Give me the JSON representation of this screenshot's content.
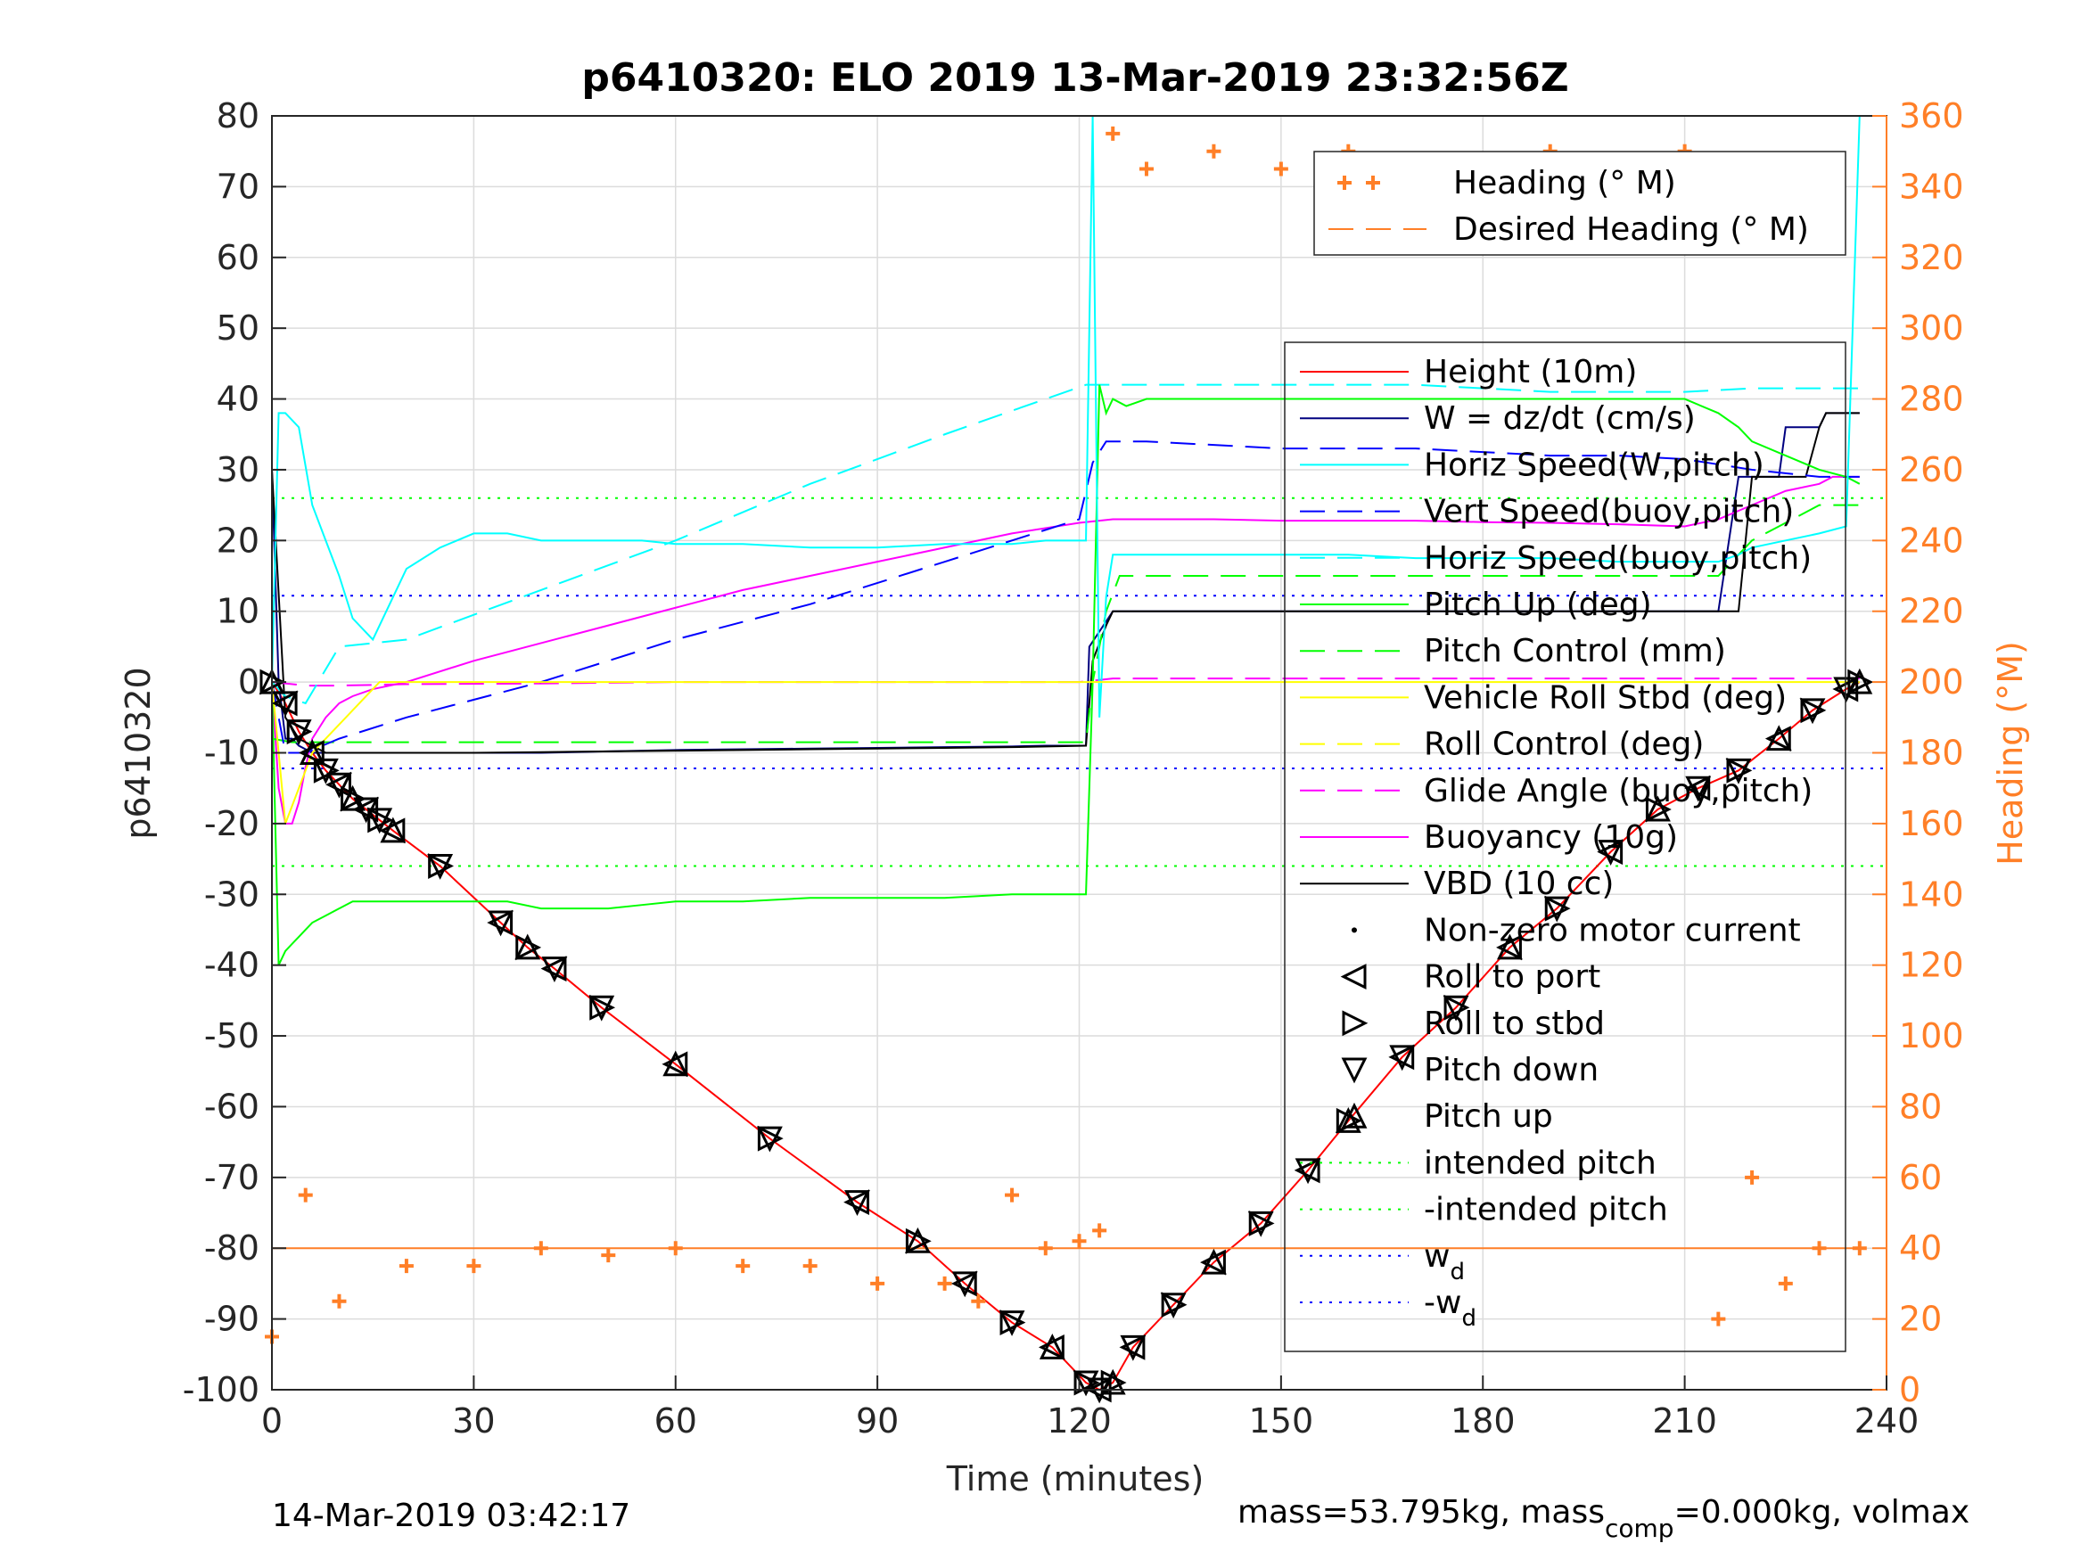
{
  "title": "p6410320: ELO 2019 13-Mar-2019 23:32:56Z",
  "footer": {
    "date": "14-Mar-2019 03:42:17",
    "mass": "mass=53.795kg, mass",
    "mass_sub": "comp",
    "mass_tail": "=0.000kg, volmax"
  },
  "colors": {
    "height": "#ff0000",
    "w": "#000080",
    "horiz_w": "#00ffff",
    "vert_buoy": "#0000ff",
    "horiz_buoy": "#00ffff",
    "pitch": "#00ff00",
    "roll": "#ffff00",
    "glide": "#ff00ff",
    "buoyancy": "#ff00ff",
    "vbd": "#000000",
    "heading": "#ff7f27",
    "intended": "#00ff00",
    "wd": "#0000ff"
  },
  "chart_data": {
    "type": "line",
    "xlabel": "Time (minutes)",
    "ylabel": "p6410320",
    "y2label": "Heading (°M)",
    "xlim": [
      0,
      240
    ],
    "ylim": [
      -100,
      80
    ],
    "y2lim": [
      0,
      360
    ],
    "xticks": [
      0,
      30,
      60,
      90,
      120,
      150,
      180,
      210,
      240
    ],
    "yticks": [
      80,
      70,
      60,
      50,
      40,
      30,
      20,
      10,
      0,
      -10,
      -20,
      -30,
      -40,
      -50,
      -60,
      -70,
      -80,
      -90,
      -100
    ],
    "y2ticks": [
      360,
      340,
      320,
      300,
      280,
      260,
      240,
      220,
      200,
      180,
      160,
      140,
      120,
      100,
      80,
      60,
      40,
      20,
      0
    ],
    "grid": true,
    "legend_heading": {
      "placement": "top-right",
      "entries": [
        "Heading (° M)",
        "Desired Heading (° M)"
      ]
    },
    "legend_main": {
      "placement": "right",
      "entries": [
        {
          "label": "Height (10m)",
          "style": "line",
          "color": "#ff0000"
        },
        {
          "label": "W = dz/dt (cm/s)",
          "style": "line",
          "color": "#000080"
        },
        {
          "label": "Horiz Speed(W,pitch)",
          "style": "line",
          "color": "#00ffff"
        },
        {
          "label": "Vert Speed(buoy,pitch)",
          "style": "dash",
          "color": "#0000ff"
        },
        {
          "label": "Horiz Speed(buoy,pitch)",
          "style": "dash",
          "color": "#00ffff"
        },
        {
          "label": "Pitch Up (deg)",
          "style": "line",
          "color": "#00ff00"
        },
        {
          "label": "Pitch Control (mm)",
          "style": "dash",
          "color": "#00ff00"
        },
        {
          "label": "Vehicle Roll Stbd (deg)",
          "style": "line",
          "color": "#ffff00"
        },
        {
          "label": "Roll Control (deg)",
          "style": "dash",
          "color": "#ffff00"
        },
        {
          "label": "Glide Angle (buoy,pitch)",
          "style": "dash",
          "color": "#ff00ff"
        },
        {
          "label": "Buoyancy (10g)",
          "style": "line",
          "color": "#ff00ff"
        },
        {
          "label": "VBD (10 cc)",
          "style": "line",
          "color": "#000000"
        },
        {
          "label": "Non-zero motor current",
          "style": "dot",
          "color": "#000000"
        },
        {
          "label": "Roll to port",
          "style": "tri-left",
          "color": "#000000"
        },
        {
          "label": "Roll to stbd",
          "style": "tri-right",
          "color": "#000000"
        },
        {
          "label": "Pitch down",
          "style": "tri-down",
          "color": "#000000"
        },
        {
          "label": "Pitch up",
          "style": "tri-up",
          "color": "#000000"
        },
        {
          "label": "intended pitch",
          "style": "dot-line",
          "color": "#00ff00"
        },
        {
          "label": "-intended pitch",
          "style": "dot-line",
          "color": "#00ff00"
        },
        {
          "label": "w",
          "sub": "d",
          "style": "dot-line",
          "color": "#0000ff"
        },
        {
          "label": "-w",
          "sub": "d",
          "style": "dot-line",
          "color": "#0000ff"
        }
      ]
    },
    "reference_lines": {
      "intended_pitch": 26,
      "wd": 12.2,
      "desired_heading": 40
    },
    "series": [
      {
        "name": "Height (10m)",
        "x": [
          0,
          2,
          4,
          6,
          8,
          10,
          12,
          14,
          16,
          18,
          25,
          34,
          38,
          42,
          49,
          60,
          74,
          87,
          96,
          103,
          110,
          116,
          121,
          123,
          125,
          128,
          134,
          140,
          147,
          154,
          160,
          168,
          176,
          184,
          191,
          199,
          206,
          212,
          218,
          224,
          229,
          234,
          236
        ],
        "y": [
          0,
          -3,
          -7,
          -10,
          -12.5,
          -14.5,
          -16.5,
          -18,
          -19.5,
          -21,
          -26,
          -34,
          -37.5,
          -40.5,
          -46,
          -54,
          -64.5,
          -73.5,
          -79,
          -85,
          -90.5,
          -94,
          -99,
          -100,
          -99,
          -94,
          -88,
          -82,
          -76.5,
          -69,
          -62,
          -53,
          -46,
          -37.5,
          -32,
          -24,
          -18,
          -15,
          -12.5,
          -8,
          -4,
          -1,
          0
        ]
      },
      {
        "name": "W = dz/dt (cm/s)",
        "x": [
          0,
          1,
          2,
          3,
          4,
          5,
          6,
          8,
          10,
          12,
          15,
          20,
          30,
          40,
          50,
          60,
          70,
          80,
          90,
          100,
          110,
          115,
          121,
          121.5,
          125,
          130,
          140,
          150,
          160,
          170,
          180,
          190,
          200,
          210,
          215,
          218,
          220,
          224,
          225,
          230,
          231,
          234,
          236
        ],
        "y": [
          30,
          0,
          -8,
          -8,
          -9,
          -9.5,
          -10,
          -10,
          -10,
          -10,
          -10,
          -10,
          -10,
          -10,
          -9.8,
          -9.6,
          -9.5,
          -9.4,
          -9.3,
          -9.2,
          -9.1,
          -9.0,
          -9,
          5,
          10,
          10,
          10,
          10,
          10,
          10,
          10,
          10,
          10,
          10,
          10,
          29,
          29,
          29,
          36,
          36,
          38,
          38,
          38
        ]
      },
      {
        "name": "VBD (10 cc)",
        "x": [
          0,
          2,
          4,
          6,
          8,
          10,
          14,
          18,
          20,
          30,
          40,
          50,
          60,
          70,
          80,
          90,
          100,
          110,
          121,
          122,
          124,
          125,
          126,
          130,
          140,
          150,
          160,
          170,
          180,
          190,
          200,
          210,
          215,
          218,
          220,
          224,
          225,
          228,
          230,
          231,
          234,
          236
        ],
        "y": [
          30,
          -5,
          -8,
          -9,
          -10,
          -10,
          -10,
          -10,
          -10,
          -10,
          -9.9,
          -9.8,
          -9.7,
          -9.6,
          -9.5,
          -9.4,
          -9.3,
          -9.2,
          -9,
          3,
          8,
          10,
          10,
          10,
          10,
          10,
          10,
          10,
          10,
          10,
          10,
          10,
          10,
          10,
          29,
          29,
          29,
          29,
          36,
          38,
          38,
          38
        ]
      },
      {
        "name": "Buoyancy (10g)",
        "x": [
          0,
          1,
          2,
          3,
          4,
          5,
          6,
          8,
          10,
          12,
          15,
          20,
          30,
          40,
          50,
          60,
          70,
          80,
          90,
          100,
          110,
          120,
          125,
          130,
          140,
          150,
          160,
          170,
          180,
          190,
          200,
          210,
          215,
          220,
          225,
          230,
          232,
          234,
          236
        ],
        "y": [
          0,
          -15,
          -20,
          -20,
          -17,
          -12,
          -8,
          -5,
          -3,
          -2,
          -1,
          0,
          3,
          5.5,
          8,
          10.5,
          13,
          15,
          17,
          19,
          21,
          22.5,
          23,
          23,
          23,
          22.8,
          22.8,
          22.8,
          22.6,
          22.5,
          22.3,
          22,
          23,
          25,
          27,
          28,
          29,
          29,
          29
        ]
      },
      {
        "name": "Glide Angle (buoy,pitch)",
        "x": [
          0,
          5,
          10,
          20,
          40,
          60,
          80,
          100,
          120,
          125,
          140,
          160,
          180,
          200,
          220,
          236
        ],
        "y": [
          0,
          -0.5,
          -0.5,
          -0.3,
          -0.2,
          0,
          0,
          0,
          0,
          0.5,
          0.5,
          0.5,
          0.5,
          0.5,
          0.5,
          0.5
        ]
      },
      {
        "name": "Pitch Control (mm)",
        "x": [
          0,
          3,
          6,
          10,
          20,
          40,
          60,
          80,
          100,
          121,
          122,
          124,
          126,
          130,
          140,
          160,
          180,
          200,
          215,
          220,
          224,
          230,
          236
        ],
        "y": [
          -8,
          -8.5,
          -8.5,
          -8.5,
          -8.5,
          -8.5,
          -8.5,
          -8.5,
          -8.5,
          -8.5,
          0,
          10,
          15,
          15,
          15,
          15,
          15,
          15,
          15,
          20,
          22,
          25,
          25
        ]
      },
      {
        "name": "Vert Speed(buoy,pitch)",
        "x": [
          0,
          2,
          5,
          10,
          20,
          40,
          60,
          80,
          100,
          120,
          122,
          124,
          130,
          140,
          150,
          160,
          170,
          180,
          190,
          200,
          210,
          220,
          230,
          236
        ],
        "y": [
          0,
          -10,
          -10,
          -8,
          -5,
          0,
          6,
          11,
          17,
          23,
          31,
          34,
          34,
          33.5,
          33,
          33,
          33,
          32.5,
          32,
          32,
          31.5,
          30,
          29,
          29
        ]
      },
      {
        "name": "Horiz Speed(buoy,pitch)",
        "x": [
          0,
          2,
          5,
          10,
          20,
          40,
          60,
          80,
          100,
          121,
          123,
          125,
          130,
          140,
          150,
          160,
          170,
          180,
          190,
          200,
          210,
          220,
          230,
          236
        ],
        "y": [
          0,
          -2,
          -3,
          5,
          6,
          13,
          20,
          28,
          35,
          42,
          42,
          42,
          42,
          42,
          42,
          42,
          42,
          41.5,
          41,
          41,
          41,
          41.5,
          41.5,
          41.5
        ]
      },
      {
        "name": "Pitch Up (deg)",
        "x": [
          0,
          1,
          2,
          3,
          4,
          5,
          6,
          8,
          10,
          12,
          15,
          20,
          25,
          30,
          35,
          40,
          45,
          50,
          55,
          60,
          70,
          80,
          90,
          100,
          110,
          115,
          121,
          122,
          123,
          124,
          125,
          127,
          130,
          140,
          150,
          160,
          170,
          180,
          190,
          200,
          210,
          215,
          218,
          220,
          225,
          230,
          234,
          236
        ],
        "y": [
          0,
          -40,
          -38,
          -37,
          -36,
          -35,
          -34,
          -33,
          -32,
          -31,
          -31,
          -31,
          -31,
          -31,
          -31,
          -32,
          -32,
          -32,
          -31.5,
          -31,
          -31,
          -30.5,
          -30.5,
          -30.5,
          -30,
          -30,
          -30,
          0,
          42,
          38,
          40,
          39,
          40,
          40,
          40,
          40,
          40,
          40,
          40,
          40,
          40,
          38,
          36,
          34,
          32,
          30,
          29,
          28
        ]
      },
      {
        "name": "Horiz Speed(W,pitch)",
        "x": [
          0,
          1,
          2,
          3,
          4,
          6,
          8,
          10,
          12,
          15,
          20,
          25,
          30,
          35,
          40,
          45,
          50,
          55,
          60,
          65,
          70,
          80,
          90,
          100,
          110,
          115,
          121,
          122,
          123,
          124,
          125,
          127,
          130,
          140,
          150,
          160,
          170,
          180,
          190,
          200,
          210,
          215,
          218,
          220,
          225,
          230,
          234,
          236
        ],
        "y": [
          0,
          38,
          38,
          37,
          36,
          25,
          20,
          15,
          9,
          6,
          16,
          19,
          21,
          21,
          20,
          20,
          20,
          20,
          19.5,
          19.5,
          19.5,
          19,
          19,
          19.5,
          19.5,
          20,
          20,
          80,
          -5,
          12,
          18,
          18,
          18,
          18,
          18,
          18,
          17.5,
          17.5,
          17.5,
          17,
          17,
          17,
          18,
          19,
          20,
          21,
          22,
          80
        ]
      },
      {
        "name": "Vehicle Roll Stbd (deg)",
        "x": [
          0,
          2,
          4,
          6,
          8,
          10,
          12,
          14,
          16,
          20,
          30,
          40,
          50,
          60,
          70,
          80,
          90,
          100,
          110,
          120,
          121,
          122,
          124,
          126,
          130,
          140,
          150,
          160,
          170,
          180,
          190,
          200,
          210,
          215,
          218,
          220,
          225,
          230,
          236
        ],
        "y": [
          0,
          -20,
          -15,
          -10,
          -8,
          -6,
          -4,
          -2,
          0,
          0,
          0,
          0,
          0,
          0,
          0,
          0,
          0,
          0,
          0,
          0,
          0,
          0,
          0,
          0,
          0,
          0,
          0,
          0,
          0,
          0,
          0,
          0,
          0,
          0,
          0,
          0,
          0,
          0,
          0
        ]
      },
      {
        "name": "Heading (° M)",
        "x": [
          0,
          5,
          10,
          20,
          30,
          40,
          50,
          60,
          70,
          80,
          90,
          100,
          105,
          110,
          115,
          120,
          123,
          125,
          130,
          140,
          150,
          160,
          170,
          180,
          190,
          200,
          210,
          215,
          220,
          225,
          230,
          236
        ],
        "y2": [
          15,
          55,
          25,
          35,
          35,
          40,
          38,
          40,
          35,
          35,
          30,
          30,
          25,
          55,
          40,
          42,
          45,
          355,
          345,
          350,
          345,
          350,
          340,
          345,
          350,
          345,
          350,
          20,
          60,
          30,
          40,
          40
        ]
      },
      {
        "name": "Desired Heading (° M)",
        "x": [
          0,
          236
        ],
        "y2": [
          40,
          40
        ]
      }
    ]
  }
}
